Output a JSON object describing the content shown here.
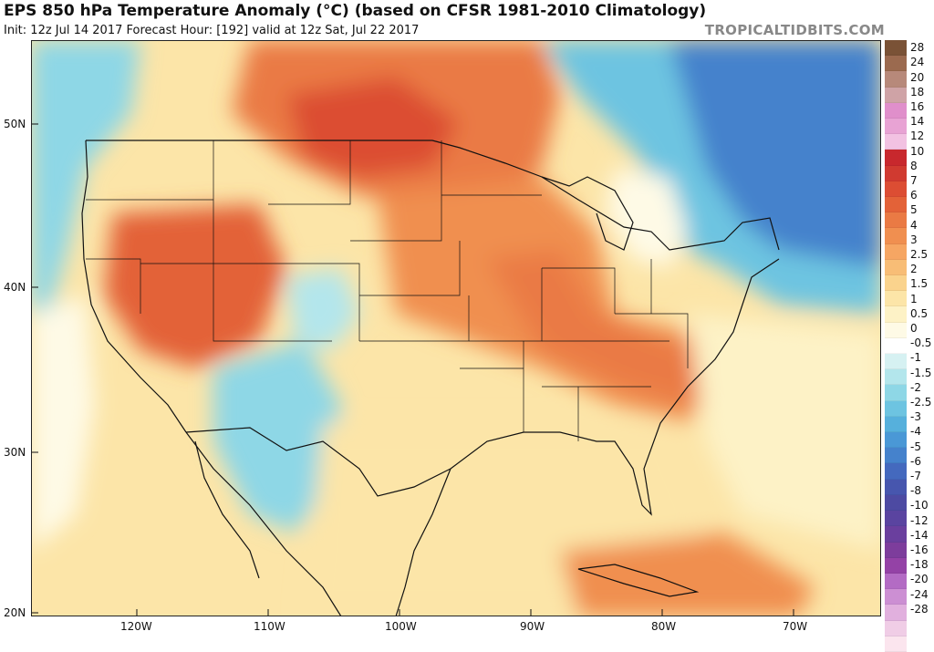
{
  "header": {
    "title": "EPS 850 hPa Temperature Anomaly (°C) (based on CFSR 1981-2010 Climatology)",
    "subtitle": "Init: 12z Jul 14 2017   Forecast Hour: [192]   valid at 12z Sat, Jul 22 2017",
    "brand": "TROPICALTIDBITS.COM"
  },
  "map": {
    "lat_labels": [
      "50N",
      "40N",
      "30N",
      "20N"
    ],
    "lon_labels": [
      "120W",
      "110W",
      "100W",
      "90W",
      "80W",
      "70W"
    ]
  },
  "legend": {
    "labels": [
      "28",
      "24",
      "20",
      "18",
      "16",
      "14",
      "12",
      "10",
      "8",
      "7",
      "6",
      "5",
      "4",
      "3",
      "2.5",
      "2",
      "1.5",
      "1",
      "0.5",
      "0",
      "-0.5",
      "-1",
      "-1.5",
      "-2",
      "-2.5",
      "-3",
      "-4",
      "-5",
      "-6",
      "-7",
      "-8",
      "-10",
      "-12",
      "-14",
      "-16",
      "-18",
      "-20",
      "-24",
      "-28"
    ],
    "colors": [
      "#7a5236",
      "#9b6a4f",
      "#b7897a",
      "#cfa3a6",
      "#e08fcb",
      "#e8a3d4",
      "#f2c2e2",
      "#c8282d",
      "#d03a30",
      "#dc4d33",
      "#e36238",
      "#ea7a44",
      "#f08f50",
      "#f6a663",
      "#f8bd76",
      "#fad38d",
      "#fce5a8",
      "#fdf2c6",
      "#fefae6",
      "#ffffff",
      "#d6f1f2",
      "#b3e6ec",
      "#8ed7e6",
      "#6dc4e1",
      "#56b0dc",
      "#4a98d6",
      "#4582cc",
      "#4469be",
      "#4756ae",
      "#4d4aa2",
      "#5a44a0",
      "#6a3f9e",
      "#7d3d9c",
      "#9442a6",
      "#b36bc4",
      "#cc8fd3",
      "#e1b0de",
      "#f0cde6",
      "#fbe5ee"
    ]
  }
}
